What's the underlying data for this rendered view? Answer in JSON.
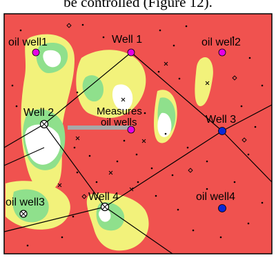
{
  "caption": "be controlled (Figure 12).",
  "colors": {
    "background": "#f0524f",
    "yellow": "#f2f27b",
    "green": "#8fe08c",
    "white": "#ffffff",
    "magenta_marker": "#e600e6",
    "blue_marker": "#0a28d6",
    "measure_bar": "#a8a8a8",
    "line": "#000000"
  },
  "labels": {
    "oil_well1": "oil well1",
    "well_1": "Well 1",
    "oil_well2": "oil well2",
    "well_2": "Well 2",
    "measures": "Measures",
    "oil_wells": "oil wells",
    "well_3": "Well 3",
    "oil_well3": "oil well3",
    "well_4": "Well 4",
    "oil_well4": "oil well4"
  },
  "markers": {
    "oil_well1": "magenta-circle",
    "well_1": "magenta-circle",
    "oil_well2": "magenta-circle",
    "well_2": "open-circle-cross",
    "measures": "magenta-circle",
    "well_3": "blue-circle",
    "oil_well3": "open-circle-cross",
    "well_4": "open-circle-cross",
    "oil_well4": "blue-circle"
  }
}
